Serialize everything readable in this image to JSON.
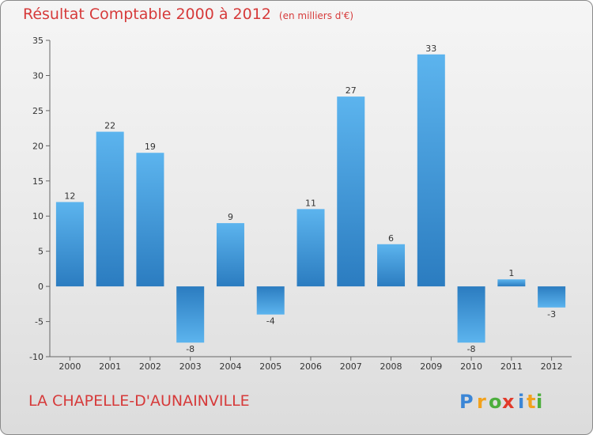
{
  "header": {
    "title": "Résultat Comptable 2000 à 2012",
    "subtitle": "(en milliers d'€)"
  },
  "location": "LA CHAPELLE-D'AUNAINVILLE",
  "logo": {
    "letters": [
      "P",
      "r",
      "o",
      "x",
      "i",
      "t",
      "i"
    ],
    "colors": [
      "#3b86d6",
      "#f2a21d",
      "#4cae3d",
      "#e23a2a",
      "#3b86d6",
      "#f2a21d",
      "#4cae3d"
    ]
  },
  "colors": {
    "bar_light": "#5cb4ee",
    "bar_dark": "#2b7cc0",
    "accent": "#d63a3a"
  },
  "chart_data": {
    "type": "bar",
    "title": "Résultat Comptable 2000 à 2012",
    "xlabel": "",
    "ylabel": "",
    "ylim": [
      -10,
      35
    ],
    "yticks": [
      -10,
      -5,
      0,
      5,
      10,
      15,
      20,
      25,
      30,
      35
    ],
    "grid": false,
    "categories": [
      "2000",
      "2001",
      "2002",
      "2003",
      "2004",
      "2005",
      "2006",
      "2007",
      "2008",
      "2009",
      "2010",
      "2011",
      "2012"
    ],
    "values": [
      12,
      22,
      19,
      -8,
      9,
      -4,
      11,
      27,
      6,
      33,
      -8,
      1,
      -3
    ]
  }
}
